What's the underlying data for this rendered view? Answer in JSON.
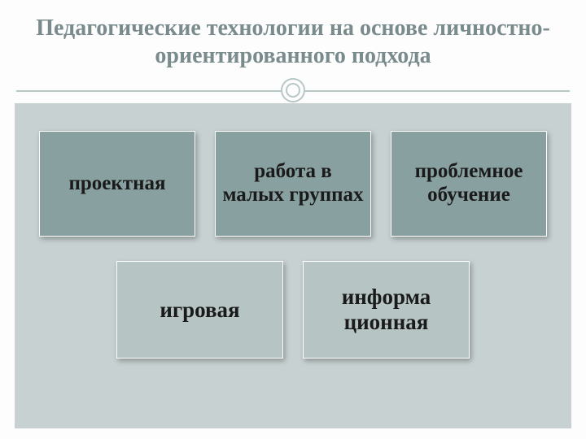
{
  "title": "Педагогические технологии на основе личностно-ориентированного подхода",
  "colors": {
    "title_color": "#7a8b8d",
    "divider_color": "#b9c6c8",
    "content_bg": "#c7d1d1",
    "box_dark": "#89a0a1",
    "box_light": "#b7c4c4",
    "box_border": "#ffffff",
    "text_color": "#1a1a1a",
    "slide_bg": "#fdfdfd"
  },
  "typography": {
    "title_fontsize": 28,
    "box_top_fontsize": 25,
    "box_bottom_fontsize": 27,
    "font_family": "Georgia, Times New Roman, serif",
    "font_weight": "bold"
  },
  "layout": {
    "type": "infographic",
    "rows": 2,
    "row1_count": 3,
    "row2_count": 2,
    "box_top_size": [
      195,
      130
    ],
    "box_bottom_size": [
      205,
      120
    ],
    "gap": 24
  },
  "boxes": {
    "row1": [
      {
        "label": "проектная",
        "variant": "dark"
      },
      {
        "label": "работа в малых группах",
        "variant": "dark"
      },
      {
        "label": "проблемное обучение",
        "variant": "dark"
      }
    ],
    "row2": [
      {
        "label": "игровая",
        "variant": "light"
      },
      {
        "label": "информа\nционная",
        "variant": "light"
      }
    ]
  }
}
